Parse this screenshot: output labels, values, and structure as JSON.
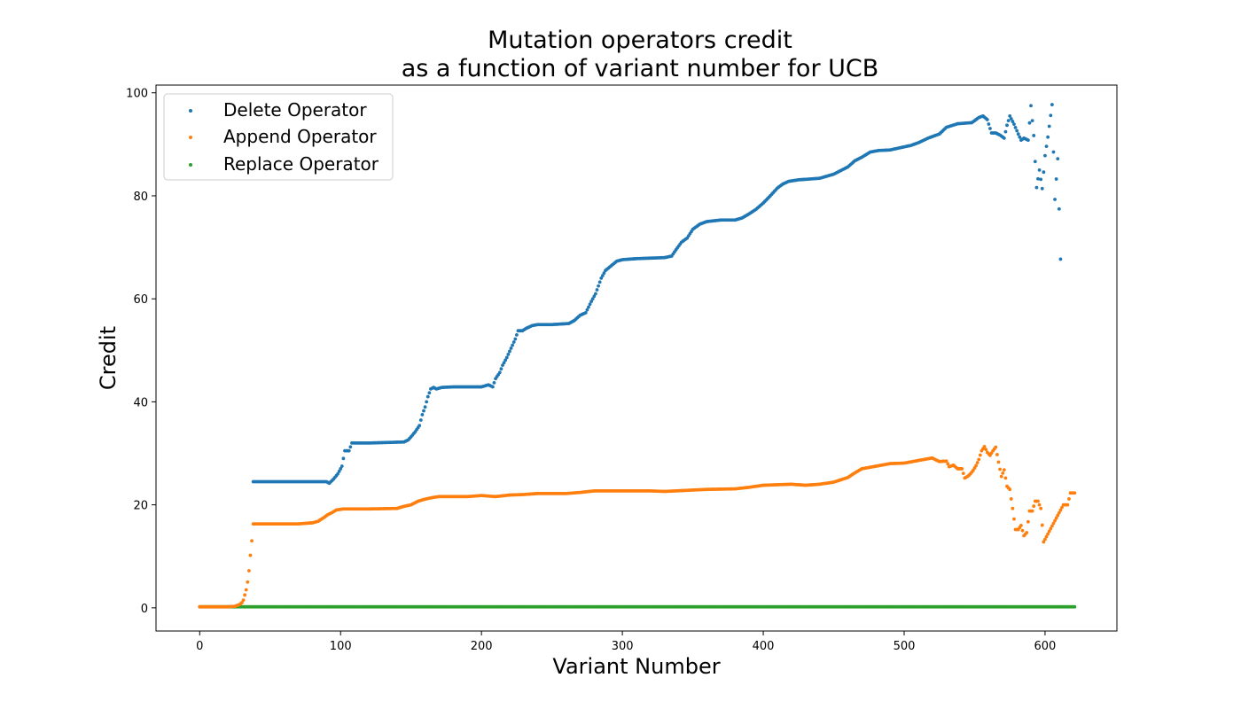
{
  "chart_data": {
    "type": "scatter",
    "title_line1": "Mutation operators credit",
    "title_line2": "as a function of variant number for UCB",
    "xlabel": "Variant Number",
    "ylabel": "Credit",
    "xlim": [
      -31,
      651
    ],
    "ylim": [
      -4.5,
      101.5
    ],
    "x_ticks": [
      0,
      100,
      200,
      300,
      400,
      500,
      600
    ],
    "y_ticks": [
      0,
      20,
      40,
      60,
      80,
      100
    ],
    "grid": false,
    "legend_position": "top-left",
    "series": [
      {
        "name": "Delete Operator",
        "color": "#1f77b4",
        "points": [
          [
            38,
            24.5
          ],
          [
            90,
            24.5
          ],
          [
            92,
            24.2
          ],
          [
            95,
            25
          ],
          [
            98,
            26
          ],
          [
            101,
            27.5
          ],
          [
            103,
            30.5
          ],
          [
            106,
            30.5
          ],
          [
            108,
            32
          ],
          [
            120,
            32
          ],
          [
            145,
            32.2
          ],
          [
            148,
            32.6
          ],
          [
            150,
            33.2
          ],
          [
            153,
            34.2
          ],
          [
            156,
            35.4
          ],
          [
            158,
            37.5
          ],
          [
            160,
            39
          ],
          [
            162,
            41
          ],
          [
            164,
            42.5
          ],
          [
            166,
            42.8
          ],
          [
            168,
            42.5
          ],
          [
            172,
            42.8
          ],
          [
            180,
            42.9
          ],
          [
            200,
            42.9
          ],
          [
            205,
            43.3
          ],
          [
            208,
            42.9
          ],
          [
            210,
            44.5
          ],
          [
            213,
            45.7
          ],
          [
            215,
            47.1
          ],
          [
            218,
            48.6
          ],
          [
            221,
            50.4
          ],
          [
            224,
            52.2
          ],
          [
            226,
            53.8
          ],
          [
            229,
            53.8
          ],
          [
            232,
            54.3
          ],
          [
            236,
            54.8
          ],
          [
            240,
            55
          ],
          [
            250,
            55
          ],
          [
            262,
            55.2
          ],
          [
            266,
            55.8
          ],
          [
            270,
            56.8
          ],
          [
            274,
            57.3
          ],
          [
            278,
            59.5
          ],
          [
            281,
            61
          ],
          [
            285,
            64
          ],
          [
            288,
            65.5
          ],
          [
            292,
            66.4
          ],
          [
            296,
            67.3
          ],
          [
            300,
            67.6
          ],
          [
            310,
            67.8
          ],
          [
            330,
            68
          ],
          [
            335,
            68.3
          ],
          [
            338,
            69.5
          ],
          [
            342,
            71
          ],
          [
            346,
            71.8
          ],
          [
            350,
            73.5
          ],
          [
            355,
            74.5
          ],
          [
            360,
            75
          ],
          [
            370,
            75.3
          ],
          [
            380,
            75.3
          ],
          [
            385,
            75.7
          ],
          [
            390,
            76.5
          ],
          [
            395,
            77.4
          ],
          [
            400,
            78.6
          ],
          [
            405,
            80
          ],
          [
            410,
            81.5
          ],
          [
            414,
            82.3
          ],
          [
            418,
            82.8
          ],
          [
            425,
            83.1
          ],
          [
            440,
            83.4
          ],
          [
            450,
            84.2
          ],
          [
            460,
            85.6
          ],
          [
            465,
            86.8
          ],
          [
            470,
            87.5
          ],
          [
            476,
            88.5
          ],
          [
            482,
            88.8
          ],
          [
            490,
            88.9
          ],
          [
            500,
            89.5
          ],
          [
            505,
            89.8
          ],
          [
            510,
            90.3
          ],
          [
            517,
            91.2
          ],
          [
            525,
            92
          ],
          [
            530,
            93.3
          ],
          [
            538,
            94
          ],
          [
            548,
            94.2
          ],
          [
            553,
            95.2
          ],
          [
            556,
            95.5
          ],
          [
            559,
            94.8
          ],
          [
            562,
            92.2
          ],
          [
            565,
            92.2
          ],
          [
            568,
            91.8
          ],
          [
            571,
            91.2
          ],
          [
            573,
            93.7
          ],
          [
            575,
            95.5
          ],
          [
            578,
            93.9
          ],
          [
            581,
            92
          ],
          [
            583,
            90.8
          ],
          [
            585,
            91.2
          ],
          [
            588,
            90.8
          ],
          [
            590,
            97.5
          ],
          [
            592,
            91.7
          ],
          [
            594,
            81.6
          ],
          [
            596,
            85
          ],
          [
            598,
            81.4
          ],
          [
            600,
            87.8
          ],
          [
            602,
            91.4
          ],
          [
            605,
            97.7
          ],
          [
            607,
            79.3
          ],
          [
            609,
            87.2
          ],
          [
            611,
            67.7
          ]
        ]
      },
      {
        "name": "Append Operator",
        "color": "#ff7f0e",
        "points": [
          [
            0,
            0.2
          ],
          [
            20,
            0.2
          ],
          [
            25,
            0.3
          ],
          [
            28,
            0.6
          ],
          [
            30,
            1
          ],
          [
            31,
            1.5
          ],
          [
            32,
            2.5
          ],
          [
            33,
            3.5
          ],
          [
            34,
            5
          ],
          [
            35,
            7.2
          ],
          [
            36,
            10.2
          ],
          [
            37,
            13
          ],
          [
            38,
            16.3
          ],
          [
            50,
            16.3
          ],
          [
            70,
            16.3
          ],
          [
            80,
            16.5
          ],
          [
            84,
            16.8
          ],
          [
            88,
            17.5
          ],
          [
            91,
            18.1
          ],
          [
            94,
            18.5
          ],
          [
            97,
            19
          ],
          [
            102,
            19.2
          ],
          [
            120,
            19.2
          ],
          [
            140,
            19.3
          ],
          [
            145,
            19.7
          ],
          [
            150,
            20
          ],
          [
            155,
            20.7
          ],
          [
            160,
            21.1
          ],
          [
            165,
            21.4
          ],
          [
            170,
            21.6
          ],
          [
            190,
            21.6
          ],
          [
            200,
            21.8
          ],
          [
            210,
            21.6
          ],
          [
            220,
            21.9
          ],
          [
            230,
            22
          ],
          [
            240,
            22.2
          ],
          [
            260,
            22.2
          ],
          [
            270,
            22.4
          ],
          [
            280,
            22.7
          ],
          [
            300,
            22.7
          ],
          [
            320,
            22.7
          ],
          [
            330,
            22.6
          ],
          [
            345,
            22.8
          ],
          [
            360,
            23
          ],
          [
            380,
            23.1
          ],
          [
            390,
            23.4
          ],
          [
            400,
            23.8
          ],
          [
            420,
            24
          ],
          [
            430,
            23.8
          ],
          [
            440,
            24
          ],
          [
            450,
            24.4
          ],
          [
            460,
            25.3
          ],
          [
            465,
            26.2
          ],
          [
            470,
            27
          ],
          [
            480,
            27.5
          ],
          [
            490,
            28
          ],
          [
            500,
            28.1
          ],
          [
            510,
            28.6
          ],
          [
            520,
            29.1
          ],
          [
            522,
            28.8
          ],
          [
            525,
            28.4
          ],
          [
            530,
            28.5
          ],
          [
            532,
            27.4
          ],
          [
            535,
            27.7
          ],
          [
            538,
            27
          ],
          [
            541,
            27
          ],
          [
            543,
            25.2
          ],
          [
            545,
            25.5
          ],
          [
            547,
            26
          ],
          [
            549,
            26.7
          ],
          [
            551,
            27.6
          ],
          [
            553,
            28.8
          ],
          [
            555,
            30.5
          ],
          [
            557,
            31.3
          ],
          [
            559,
            30.2
          ],
          [
            561,
            29.6
          ],
          [
            563,
            30.5
          ],
          [
            565,
            31.2
          ],
          [
            567,
            28.3
          ],
          [
            569,
            25.5
          ],
          [
            571,
            26.8
          ],
          [
            573,
            23.6
          ],
          [
            575,
            23
          ],
          [
            577,
            19.3
          ],
          [
            579,
            15.2
          ],
          [
            581,
            15.2
          ],
          [
            583,
            16
          ],
          [
            585,
            14
          ],
          [
            587,
            14.6
          ],
          [
            589,
            18.8
          ],
          [
            591,
            18.8
          ],
          [
            593,
            20.7
          ],
          [
            595,
            20.7
          ],
          [
            597,
            19.3
          ],
          [
            599,
            12.8
          ],
          [
            613,
            20
          ],
          [
            616,
            20
          ],
          [
            618,
            22.3
          ],
          [
            621,
            22.3
          ]
        ]
      },
      {
        "name": "Replace Operator",
        "color": "#2ca02c",
        "points": [
          [
            0,
            0.2
          ],
          [
            621,
            0.2
          ]
        ]
      }
    ]
  }
}
